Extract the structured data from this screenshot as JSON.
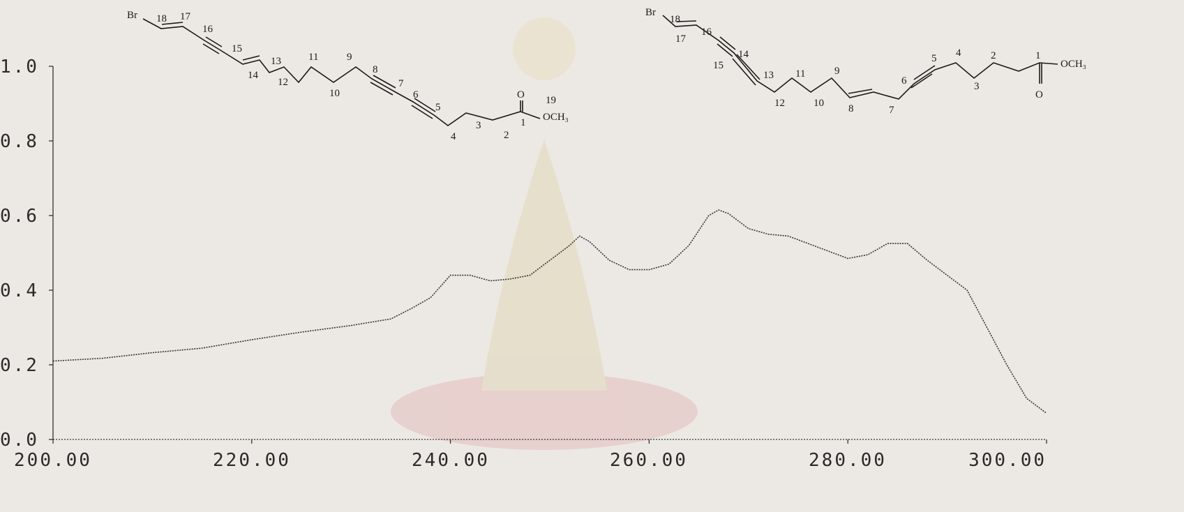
{
  "chart_data": {
    "type": "line",
    "title": "",
    "xlabel": "",
    "ylabel": "",
    "xlim": [
      200,
      300
    ],
    "ylim": [
      0,
      1
    ],
    "x_tick_labels": [
      "200.00",
      "220.00",
      "240.00",
      "260.00",
      "280.00",
      "300.00"
    ],
    "y_tick_labels": [
      "0.0",
      "0.2",
      "0.4",
      "0.6",
      "0.8",
      "1.0"
    ],
    "grid": false,
    "legend": "none",
    "line_color": "#333333",
    "series": [
      {
        "x": [
          200,
          205,
          210,
          215,
          220,
          225,
          230,
          234,
          236,
          238,
          240,
          242,
          244,
          246,
          248,
          250,
          252,
          253,
          254,
          256,
          258,
          260,
          262,
          264,
          266,
          267,
          268,
          270,
          272,
          274,
          276,
          278,
          280,
          282,
          284,
          286,
          288,
          290,
          292,
          294,
          296,
          298,
          300
        ],
        "y": [
          0.21,
          0.22,
          0.235,
          0.245,
          0.265,
          0.285,
          0.305,
          0.325,
          0.35,
          0.38,
          0.44,
          0.44,
          0.425,
          0.43,
          0.44,
          0.48,
          0.52,
          0.545,
          0.53,
          0.48,
          0.455,
          0.455,
          0.47,
          0.52,
          0.6,
          0.615,
          0.605,
          0.565,
          0.55,
          0.545,
          0.525,
          0.505,
          0.485,
          0.495,
          0.525,
          0.525,
          0.48,
          0.44,
          0.4,
          0.3,
          0.2,
          0.11,
          0.07
        ]
      }
    ]
  },
  "structures": {
    "left": {
      "br": "Br",
      "carbon_numbers": [
        "18",
        "17",
        "16",
        "15",
        "14",
        "13",
        "12",
        "11",
        "10",
        "9",
        "8",
        "7",
        "6",
        "5",
        "4",
        "3",
        "2",
        "1",
        "19"
      ],
      "ester_o": "O",
      "methoxy": "OCH₃"
    },
    "right": {
      "br": "Br",
      "carbon_numbers": [
        "18",
        "17",
        "16",
        "15",
        "14",
        "13",
        "12",
        "11",
        "10",
        "9",
        "8",
        "7",
        "6",
        "5",
        "4",
        "3",
        "2",
        "1"
      ],
      "ester_o": "O",
      "methoxy": "OCH₃"
    }
  }
}
